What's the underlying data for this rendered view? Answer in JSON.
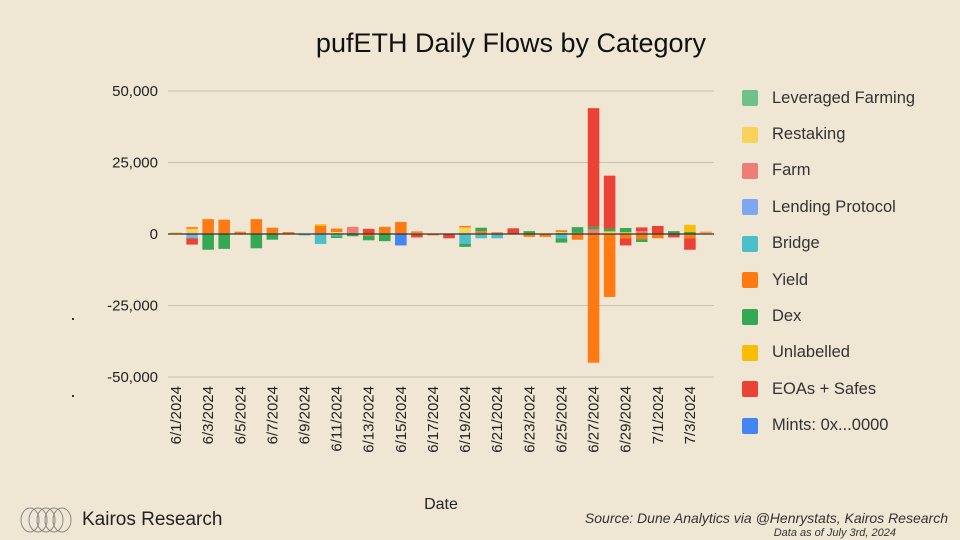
{
  "chart_data": {
    "type": "bar",
    "stacked": true,
    "title": "pufETH Daily Flows by Category",
    "xlabel": "Date",
    "ylabel": "",
    "ylim": [
      -50000,
      50000
    ],
    "yticks": [
      50000,
      25000,
      0,
      -25000,
      -50000
    ],
    "ytick_labels": [
      "50,000",
      "25,000",
      "0",
      "-25,000",
      "-50,000"
    ],
    "legend_position": "right",
    "categories": [
      "6/1/2024",
      "6/2/2024",
      "6/3/2024",
      "6/4/2024",
      "6/5/2024",
      "6/6/2024",
      "6/7/2024",
      "6/8/2024",
      "6/9/2024",
      "6/10/2024",
      "6/11/2024",
      "6/12/2024",
      "6/13/2024",
      "6/14/2024",
      "6/15/2024",
      "6/16/2024",
      "6/17/2024",
      "6/18/2024",
      "6/19/2024",
      "6/20/2024",
      "6/21/2024",
      "6/22/2024",
      "6/23/2024",
      "6/24/2024",
      "6/25/2024",
      "6/26/2024",
      "6/27/2024",
      "6/28/2024",
      "6/29/2024",
      "6/30/2024",
      "7/1/2024",
      "7/2/2024",
      "7/3/2024",
      "7/4/2024"
    ],
    "shown_x_labels": [
      "6/1/2024",
      "6/3/2024",
      "6/5/2024",
      "6/7/2024",
      "6/9/2024",
      "6/11/2024",
      "6/13/2024",
      "6/15/2024",
      "6/17/2024",
      "6/19/2024",
      "6/21/2024",
      "6/23/2024",
      "6/25/2024",
      "6/27/2024",
      "6/29/2024",
      "7/1/2024",
      "7/3/2024"
    ],
    "series": [
      {
        "name": "Leveraged Farming",
        "color": "#6fc08b",
        "values": [
          0,
          300,
          0,
          0,
          0,
          0,
          0,
          0,
          0,
          0,
          0,
          0,
          0,
          0,
          0,
          0,
          0,
          0,
          300,
          0,
          0,
          0,
          0,
          0,
          400,
          0,
          0,
          0,
          0,
          0,
          0,
          0,
          0,
          0
        ]
      },
      {
        "name": "Restaking",
        "color": "#f9d25a",
        "values": [
          700,
          1500,
          0,
          0,
          0,
          0,
          0,
          0,
          0,
          0,
          700,
          0,
          0,
          0,
          0,
          400,
          0,
          0,
          2000,
          0,
          0,
          0,
          0,
          0,
          300,
          0,
          0,
          900,
          600,
          0,
          0,
          0,
          0,
          500
        ]
      },
      {
        "name": "Farm",
        "color": "#ec7e76",
        "values": [
          0,
          0,
          0,
          0,
          0,
          0,
          0,
          0,
          0,
          0,
          0,
          2500,
          0,
          0,
          0,
          0,
          0,
          0,
          0,
          0,
          0,
          0,
          0,
          0,
          0,
          400,
          1600,
          0,
          0,
          1000,
          0,
          0,
          0,
          0
        ]
      },
      {
        "name": "Lending Protocol",
        "color": "#7ea7f2",
        "values": [
          0,
          -1000,
          0,
          0,
          0,
          0,
          0,
          0,
          0,
          0,
          0,
          0,
          0,
          0,
          0,
          0,
          0,
          0,
          0,
          0,
          0,
          0,
          0,
          0,
          0,
          0,
          0,
          0,
          0,
          0,
          0,
          0,
          0,
          0
        ]
      },
      {
        "name": "Bridge",
        "color": "#4cbfcb",
        "values": [
          0,
          -500,
          0,
          0,
          0,
          0,
          0,
          0,
          -500,
          -3500,
          -800,
          0,
          0,
          0,
          0,
          0,
          0,
          0,
          -3500,
          -1500,
          -1500,
          0,
          0,
          0,
          -1500,
          0,
          0,
          0,
          0,
          0,
          0,
          0,
          0,
          0
        ]
      },
      {
        "name": "Yield",
        "color": "#ff7a12",
        "values": [
          0,
          600,
          5200,
          5000,
          800,
          5200,
          2200,
          700,
          0,
          2800,
          1200,
          0,
          -700,
          2500,
          4200,
          500,
          -500,
          0,
          500,
          1000,
          600,
          0,
          -1000,
          -1000,
          600,
          -2000,
          -45000,
          -22000,
          -1500,
          -1800,
          -1500,
          0,
          -1500,
          300
        ]
      },
      {
        "name": "Dex",
        "color": "#34a853",
        "values": [
          0,
          0,
          -5500,
          -5200,
          0,
          -5000,
          -2000,
          0,
          0,
          0,
          -600,
          -800,
          -1500,
          -2500,
          0,
          0,
          0,
          0,
          -1000,
          1200,
          0,
          0,
          1000,
          0,
          -1500,
          2000,
          900,
          1000,
          1500,
          -1000,
          0,
          1000,
          700,
          0
        ]
      },
      {
        "name": "Unlabelled",
        "color": "#fbbc04",
        "values": [
          0,
          0,
          0,
          0,
          0,
          0,
          0,
          0,
          0,
          600,
          0,
          0,
          0,
          0,
          0,
          0,
          0,
          0,
          0,
          0,
          0,
          0,
          0,
          0,
          0,
          0,
          0,
          0,
          0,
          0,
          0,
          0,
          2500,
          0
        ]
      },
      {
        "name": "EOAs + Safes",
        "color": "#ea4335",
        "values": [
          0,
          -2200,
          0,
          0,
          0,
          0,
          0,
          0,
          0,
          0,
          0,
          0,
          1800,
          0,
          0,
          -1200,
          0,
          -1500,
          0,
          0,
          0,
          2000,
          0,
          0,
          0,
          0,
          41500,
          18500,
          -2500,
          1300,
          2800,
          -1200,
          -4000,
          0
        ]
      },
      {
        "name": "Mints: 0x...0000",
        "color": "#4285f4",
        "values": [
          0,
          0,
          0,
          0,
          0,
          0,
          0,
          0,
          0,
          0,
          0,
          0,
          0,
          0,
          -4000,
          0,
          0,
          0,
          0,
          0,
          0,
          0,
          0,
          0,
          0,
          0,
          0,
          0,
          0,
          0,
          0,
          0,
          0,
          0
        ]
      }
    ]
  },
  "brand": {
    "name": "Kairos Research"
  },
  "footer": {
    "source": "Source: Dune Analytics via @Henrystats, Kairos Research",
    "as_of": "Data as of July 3rd, 2024"
  }
}
